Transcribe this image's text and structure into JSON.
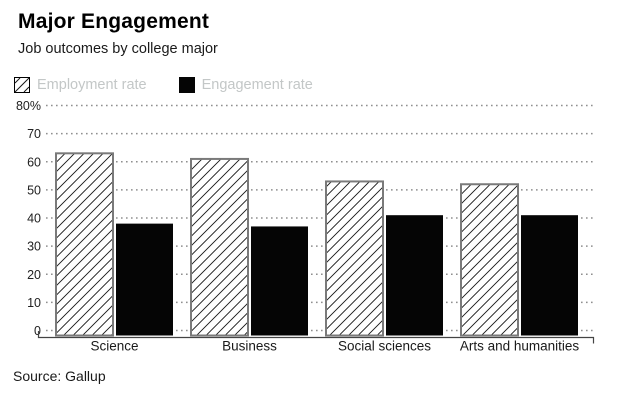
{
  "header": {
    "title": "Major Engagement",
    "subtitle": "Job outcomes by college major"
  },
  "legend": [
    {
      "label": "Employment rate",
      "swatch": "hatched"
    },
    {
      "label": "Engagement rate",
      "swatch": "solid-black"
    }
  ],
  "source": "Source: Gallup",
  "colors": {
    "bar_solid": "#050505",
    "bar_hatch_line": "#161616",
    "bar_border": "#7a7a7a",
    "bar_fill": "#ffffff",
    "gridline": "#8f8f8f",
    "axis": "#444444",
    "tick_text": "#222222",
    "category_text": "#1a1a1a",
    "legend_text": "#c3c7c7"
  },
  "chart_data": {
    "type": "bar",
    "categories": [
      "Science",
      "Business",
      "Social sciences",
      "Arts and humanities"
    ],
    "series": [
      {
        "name": "Employment rate",
        "style": "hatched",
        "values": [
          63,
          61,
          53,
          52
        ]
      },
      {
        "name": "Engagement rate",
        "style": "solid",
        "values": [
          38,
          37,
          41,
          41
        ]
      }
    ],
    "title": "Major Engagement",
    "subtitle": "Job outcomes by college major",
    "xlabel": "",
    "ylabel": "",
    "ylim": [
      0,
      80
    ],
    "ytick_step": 10,
    "ytick_labels": [
      "0",
      "10",
      "20",
      "30",
      "40",
      "50",
      "60",
      "70",
      "80%"
    ],
    "grid": "horizontal-dotted",
    "legend_position": "top-left",
    "source": "Source: Gallup"
  }
}
